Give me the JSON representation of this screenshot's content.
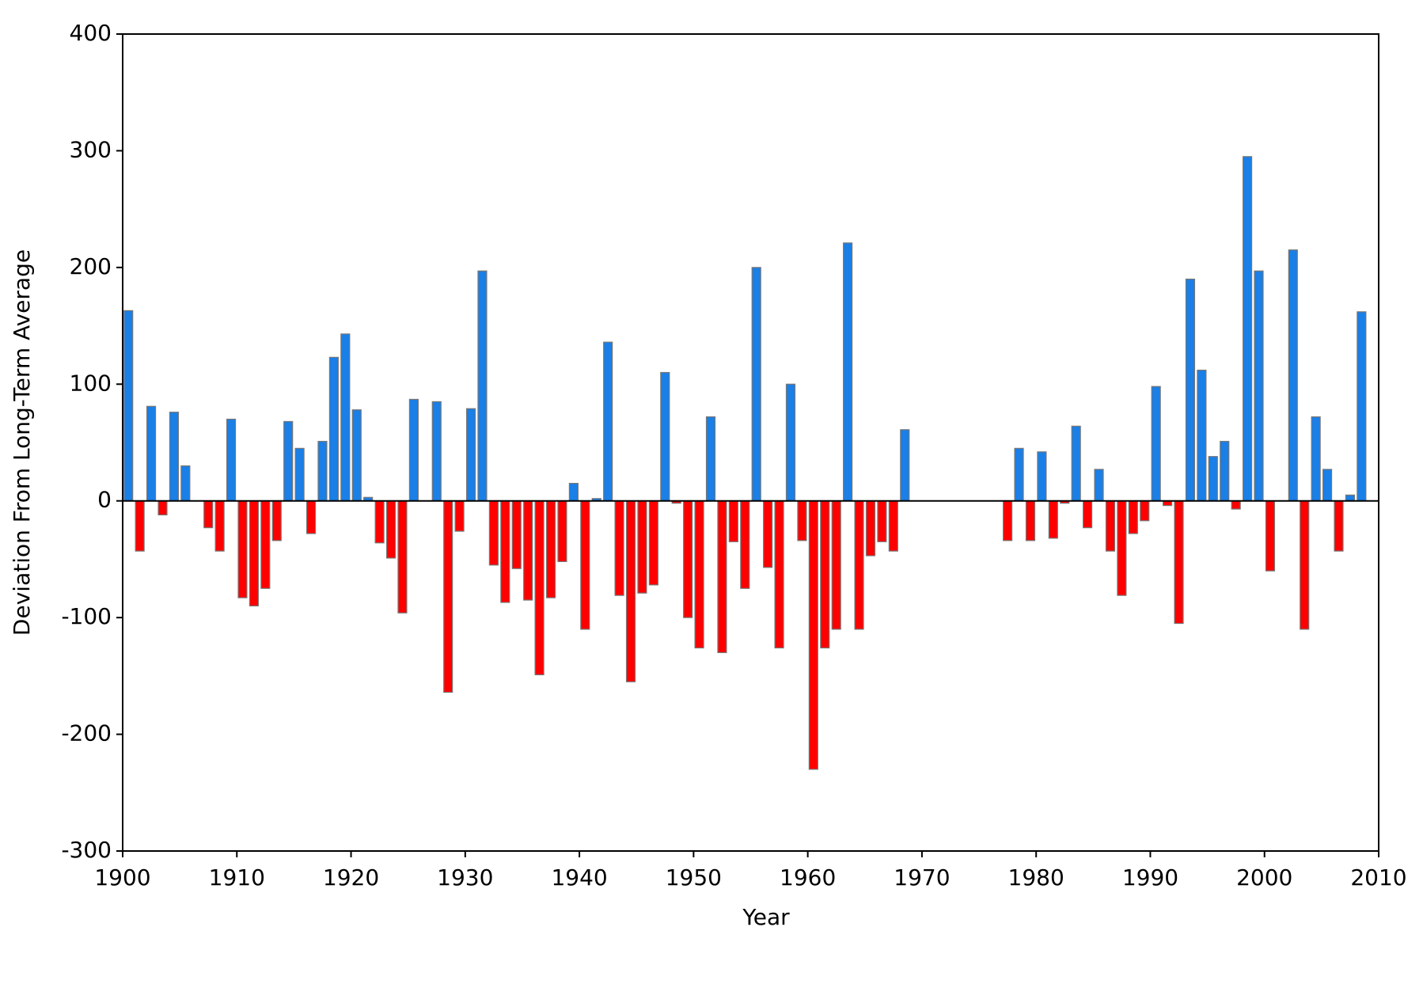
{
  "chart_data": {
    "type": "bar",
    "x_label": "Year",
    "y_label": "Deviation From Long-Term Average",
    "x": [
      1900,
      1901,
      1902,
      1903,
      1904,
      1905,
      1907,
      1908,
      1909,
      1910,
      1911,
      1912,
      1913,
      1914,
      1915,
      1916,
      1917,
      1918,
      1919,
      1920,
      1921,
      1922,
      1923,
      1924,
      1925,
      1927,
      1928,
      1929,
      1930,
      1931,
      1932,
      1933,
      1934,
      1935,
      1936,
      1937,
      1938,
      1939,
      1940,
      1941,
      1942,
      1943,
      1944,
      1945,
      1946,
      1947,
      1948,
      1949,
      1950,
      1951,
      1952,
      1953,
      1954,
      1955,
      1956,
      1957,
      1958,
      1959,
      1960,
      1961,
      1962,
      1963,
      1964,
      1965,
      1966,
      1967,
      1968,
      1977,
      1978,
      1979,
      1980,
      1981,
      1982,
      1983,
      1984,
      1985,
      1986,
      1987,
      1988,
      1989,
      1990,
      1991,
      1992,
      1993,
      1994,
      1995,
      1996,
      1997,
      1998,
      1999,
      2000,
      2002,
      2003,
      2004,
      2005,
      2006,
      2007,
      2008
    ],
    "values": [
      163,
      -43,
      81,
      -12,
      76,
      30,
      -23,
      -43,
      70,
      -83,
      -90,
      -75,
      -34,
      68,
      45,
      -28,
      51,
      123,
      143,
      78,
      3,
      -36,
      -49,
      -96,
      87,
      85,
      -164,
      -26,
      79,
      197,
      -55,
      -87,
      -58,
      -85,
      -149,
      -83,
      -52,
      15,
      -110,
      2,
      136,
      -81,
      -155,
      -79,
      -72,
      110,
      -2,
      -100,
      -126,
      72,
      -130,
      -35,
      -75,
      200,
      -57,
      -126,
      100,
      -34,
      -230,
      -126,
      -110,
      221,
      -110,
      -47,
      -35,
      -43,
      61,
      -34,
      45,
      -34,
      42,
      -32,
      -2,
      64,
      -23,
      27,
      -43,
      -81,
      -28,
      -17,
      98,
      -4,
      -105,
      190,
      112,
      38,
      51,
      -7,
      295,
      197,
      -60,
      215,
      -110,
      72,
      27,
      -43,
      5,
      162
    ],
    "positive_color": "#1a7fe6",
    "negative_color": "#ff0000",
    "xlim": [
      1900,
      2010
    ],
    "xticks": [
      1900,
      1910,
      1920,
      1930,
      1940,
      1950,
      1960,
      1970,
      1980,
      1990,
      2000,
      2010
    ],
    "ylim": [
      -300,
      400
    ],
    "yticks": [
      -300,
      -200,
      -100,
      0,
      100,
      200,
      300,
      400
    ]
  }
}
